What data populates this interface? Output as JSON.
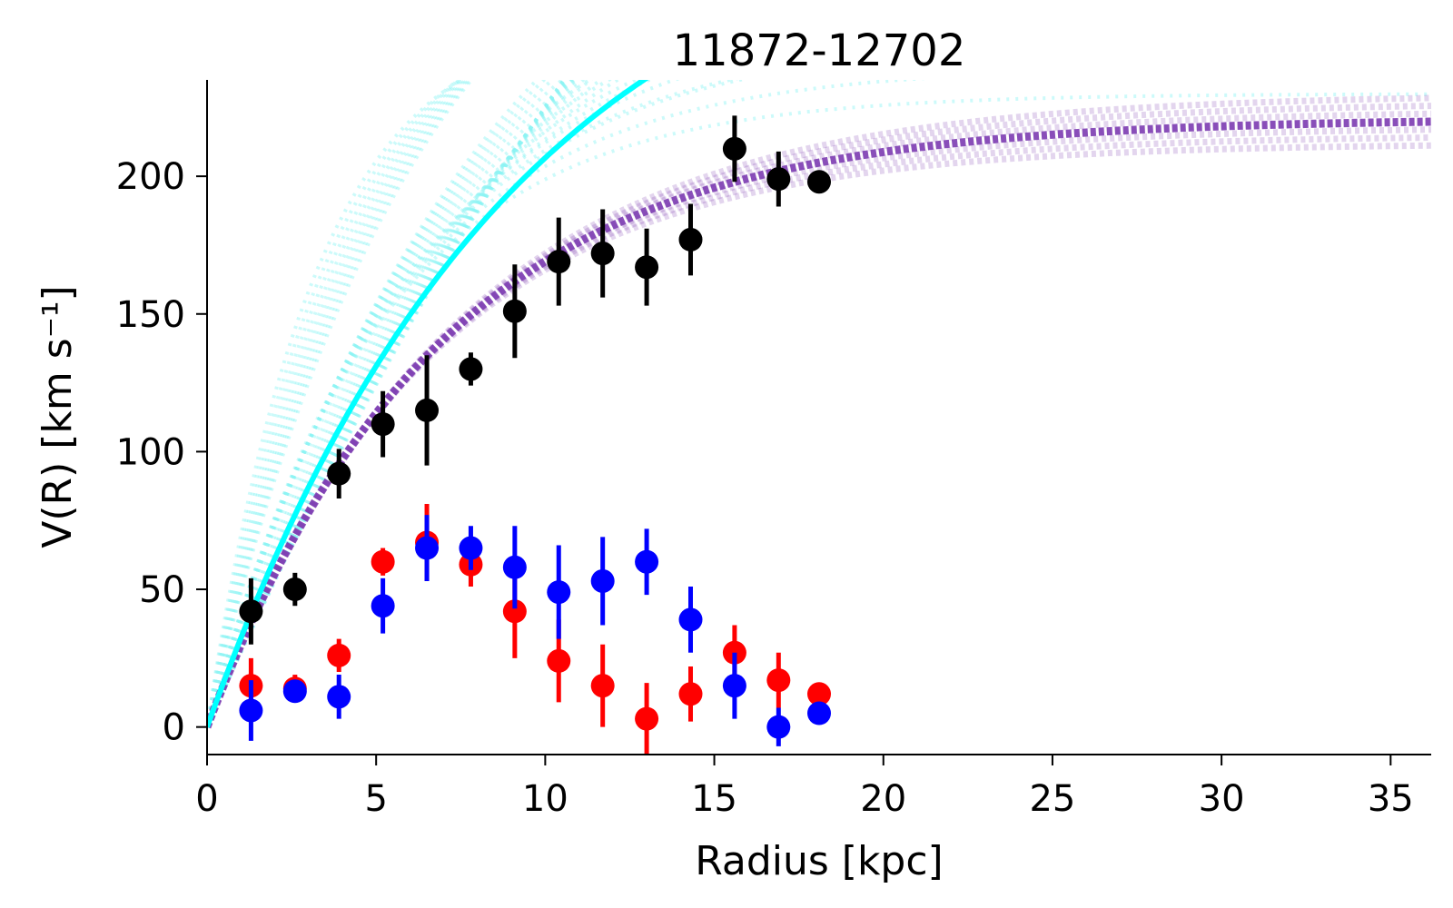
{
  "chart_data": {
    "type": "scatter",
    "title": "11872-12702",
    "xlabel": "Radius [kpc]",
    "ylabel": "V(R) [km s⁻¹]",
    "xlim": [
      0,
      36.2
    ],
    "ylim": [
      -10,
      235
    ],
    "x_ticks": [
      0,
      5,
      10,
      15,
      20,
      25,
      30,
      35
    ],
    "y_ticks": [
      0,
      50,
      100,
      150,
      200
    ],
    "grid": false,
    "legend": "none",
    "series": [
      {
        "color": "#000000",
        "x": [
          1.3,
          2.6,
          3.9,
          5.2,
          6.5,
          7.8,
          9.1,
          10.4,
          11.7,
          13.0,
          14.3,
          15.6,
          16.9,
          18.1
        ],
        "y": [
          42,
          50,
          92,
          110,
          115,
          130,
          151,
          169,
          172,
          167,
          177,
          210,
          199,
          198
        ],
        "err": [
          12,
          6,
          9,
          12,
          20,
          6,
          17,
          16,
          16,
          14,
          13,
          12,
          10,
          4
        ]
      },
      {
        "color": "#ff0000",
        "x": [
          1.3,
          2.6,
          3.9,
          5.2,
          6.5,
          7.8,
          9.1,
          10.4,
          11.7,
          13.0,
          14.3,
          15.6,
          16.9,
          18.1
        ],
        "y": [
          15,
          14,
          26,
          60,
          67,
          59,
          42,
          24,
          15,
          3,
          12,
          27,
          17,
          12
        ],
        "err": [
          10,
          5,
          6,
          5,
          14,
          8,
          17,
          15,
          15,
          13,
          10,
          10,
          10,
          3
        ]
      },
      {
        "color": "#0000ff",
        "x": [
          1.3,
          2.6,
          3.9,
          5.2,
          6.5,
          7.8,
          9.1,
          10.4,
          11.7,
          13.0,
          14.3,
          15.6,
          16.9,
          18.1
        ],
        "y": [
          6,
          13,
          11,
          44,
          65,
          65,
          58,
          49,
          53,
          60,
          39,
          15,
          0,
          5
        ],
        "err": [
          11,
          4,
          8,
          10,
          12,
          8,
          15,
          17,
          16,
          12,
          12,
          12,
          7,
          3
        ]
      }
    ],
    "curves": [
      {
        "style": "solid",
        "color": "#00ffff",
        "model": "1 - exp(-R/Rt)",
        "vmax": 310,
        "rt": 9.1
      },
      {
        "style": "thick",
        "color": "#7e3fb3",
        "model": "1 - exp(-R/Rt)",
        "vmax": 221,
        "rt": 6.9
      }
    ],
    "colors": {
      "model_samples": "#8ff3f3",
      "best_fit_cyan": "#00ffff",
      "posterior_purple": "#7e3fb3"
    }
  }
}
